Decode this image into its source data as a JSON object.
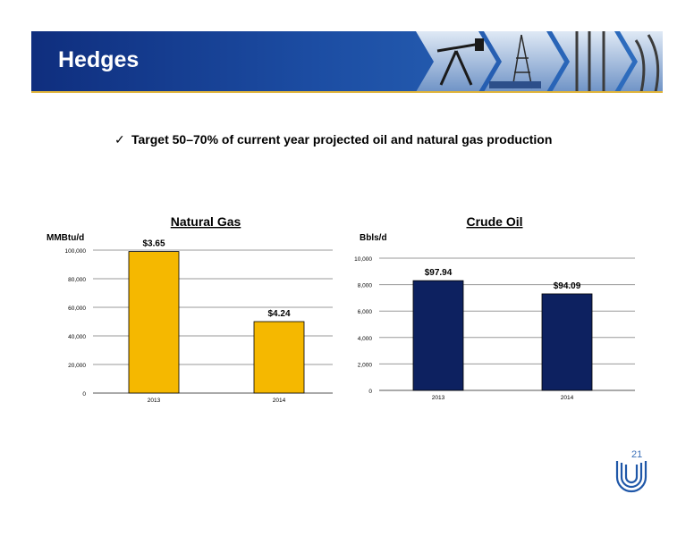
{
  "header": {
    "title": "Hedges"
  },
  "bullet": {
    "check_icon": "check-icon",
    "text": "Target 50–70%  of current year projected oil and natural gas production"
  },
  "page_number": "21",
  "colors": {
    "banner": "#1c4da3",
    "gold": "#f5b800",
    "navy": "#0d2160",
    "accent_rule": "#e0b43a"
  },
  "chart_data": [
    {
      "type": "bar",
      "title": "Natural Gas",
      "ylabel": "MMBtu/d",
      "categories": [
        "2013",
        "2014"
      ],
      "values": [
        99000,
        50000
      ],
      "data_labels": [
        "$3.65",
        "$4.24"
      ],
      "ylim": [
        0,
        100000
      ],
      "yticks": [
        0,
        20000,
        40000,
        60000,
        80000,
        100000
      ],
      "ytick_labels": [
        "0",
        "20,000",
        "40,000",
        "60,000",
        "80,000",
        "100,000"
      ],
      "bar_color": "#f5b800",
      "grid": true
    },
    {
      "type": "bar",
      "title": "Crude Oil",
      "ylabel": "Bbls/d",
      "categories": [
        "2013",
        "2014"
      ],
      "values": [
        8300,
        7300
      ],
      "data_labels": [
        "$97.94",
        "$94.09"
      ],
      "ylim": [
        0,
        10000
      ],
      "yticks": [
        0,
        2000,
        4000,
        6000,
        8000,
        10000
      ],
      "ytick_labels": [
        "0",
        "2,000",
        "4,000",
        "6,000",
        "8,000",
        "10,000"
      ],
      "bar_color": "#0d2160",
      "grid": true
    }
  ]
}
